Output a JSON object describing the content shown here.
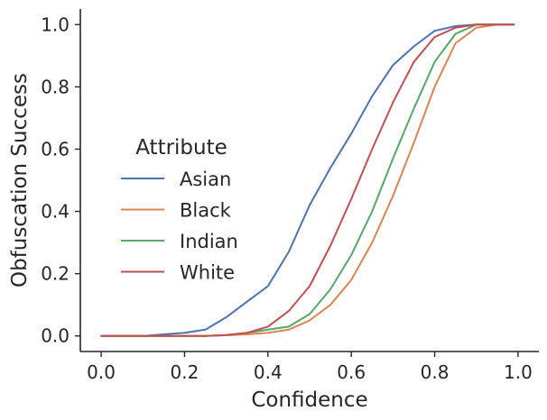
{
  "chart_data": {
    "type": "line",
    "title": "",
    "xlabel": "Confidence",
    "ylabel": "Obfuscation Success",
    "xlim": [
      -0.05,
      1.05
    ],
    "ylim": [
      -0.05,
      1.05
    ],
    "xticks": [
      0.0,
      0.2,
      0.4,
      0.6,
      0.8,
      1.0
    ],
    "xtick_labels": [
      "0.0",
      "0.2",
      "0.4",
      "0.6",
      "0.8",
      "1.0"
    ],
    "yticks": [
      0.0,
      0.2,
      0.4,
      0.6,
      0.8,
      1.0
    ],
    "ytick_labels": [
      "0.0",
      "0.2",
      "0.4",
      "0.6",
      "0.8",
      "1.0"
    ],
    "grid": false,
    "legend": {
      "title": "Attribute",
      "placement": "center-left"
    },
    "x": [
      0.0,
      0.05,
      0.1,
      0.15,
      0.2,
      0.25,
      0.3,
      0.35,
      0.4,
      0.45,
      0.5,
      0.55,
      0.6,
      0.65,
      0.7,
      0.75,
      0.8,
      0.85,
      0.9,
      0.95,
      0.99
    ],
    "series": [
      {
        "name": "Asian",
        "color": "#4c72b0",
        "values": [
          0.0,
          0.0,
          0.0,
          0.005,
          0.01,
          0.02,
          0.06,
          0.11,
          0.16,
          0.27,
          0.42,
          0.54,
          0.65,
          0.77,
          0.87,
          0.93,
          0.98,
          0.995,
          1.0,
          1.0,
          1.0
        ]
      },
      {
        "name": "Black",
        "color": "#dd8452",
        "values": [
          0.0,
          0.0,
          0.0,
          0.0,
          0.0,
          0.0,
          0.002,
          0.005,
          0.01,
          0.02,
          0.05,
          0.1,
          0.18,
          0.3,
          0.45,
          0.62,
          0.8,
          0.94,
          0.99,
          1.0,
          1.0
        ]
      },
      {
        "name": "Indian",
        "color": "#55a868",
        "values": [
          0.0,
          0.0,
          0.0,
          0.0,
          0.0,
          0.0,
          0.003,
          0.01,
          0.02,
          0.03,
          0.07,
          0.15,
          0.26,
          0.4,
          0.57,
          0.73,
          0.88,
          0.97,
          1.0,
          1.0,
          1.0
        ]
      },
      {
        "name": "White",
        "color": "#c44e52",
        "values": [
          0.0,
          0.0,
          0.0,
          0.0,
          0.0,
          0.0,
          0.003,
          0.01,
          0.03,
          0.08,
          0.16,
          0.29,
          0.44,
          0.6,
          0.75,
          0.88,
          0.96,
          0.99,
          1.0,
          1.0,
          1.0
        ]
      }
    ]
  }
}
